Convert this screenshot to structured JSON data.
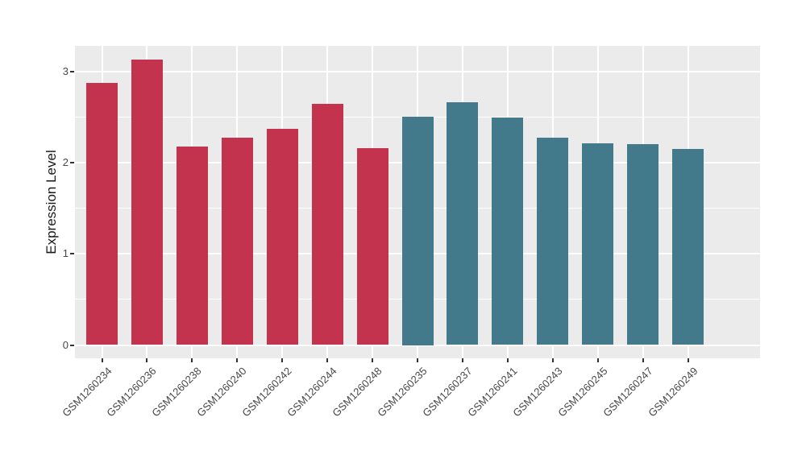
{
  "chart_data": {
    "type": "bar",
    "title": "",
    "xlabel": "",
    "ylabel": "Expression Level",
    "categories": [
      "GSM1260234",
      "GSM1260236",
      "GSM1260238",
      "GSM1260240",
      "GSM1260242",
      "GSM1260244",
      "GSM1260248",
      "GSM1260235",
      "GSM1260237",
      "GSM1260241",
      "GSM1260243",
      "GSM1260245",
      "GSM1260247",
      "GSM1260249"
    ],
    "values": [
      2.87,
      3.13,
      2.18,
      2.27,
      2.37,
      2.64,
      2.16,
      2.5,
      2.66,
      2.49,
      2.27,
      2.21,
      2.2,
      2.15
    ],
    "groups": [
      "red",
      "red",
      "red",
      "red",
      "red",
      "red",
      "red",
      "teal",
      "teal",
      "teal",
      "teal",
      "teal",
      "teal",
      "teal"
    ],
    "group_colors": {
      "red": "#C4334E",
      "teal": "#42798B"
    },
    "yticks": [
      0,
      1,
      2,
      3
    ],
    "minor_yticks": [
      0.5,
      1.5,
      2.5
    ],
    "ylim": [
      0,
      3.28
    ],
    "bar_width_fraction": 0.7,
    "grid": "on",
    "legend_position": "none",
    "panel_background": "#EBEBEB",
    "gridline_color": "#FFFFFF",
    "axis_text_color": "#474747",
    "axis_title_color": "#1A1A1A",
    "tick_mark_color": "#333333",
    "x_label_rotation_deg": 45
  }
}
